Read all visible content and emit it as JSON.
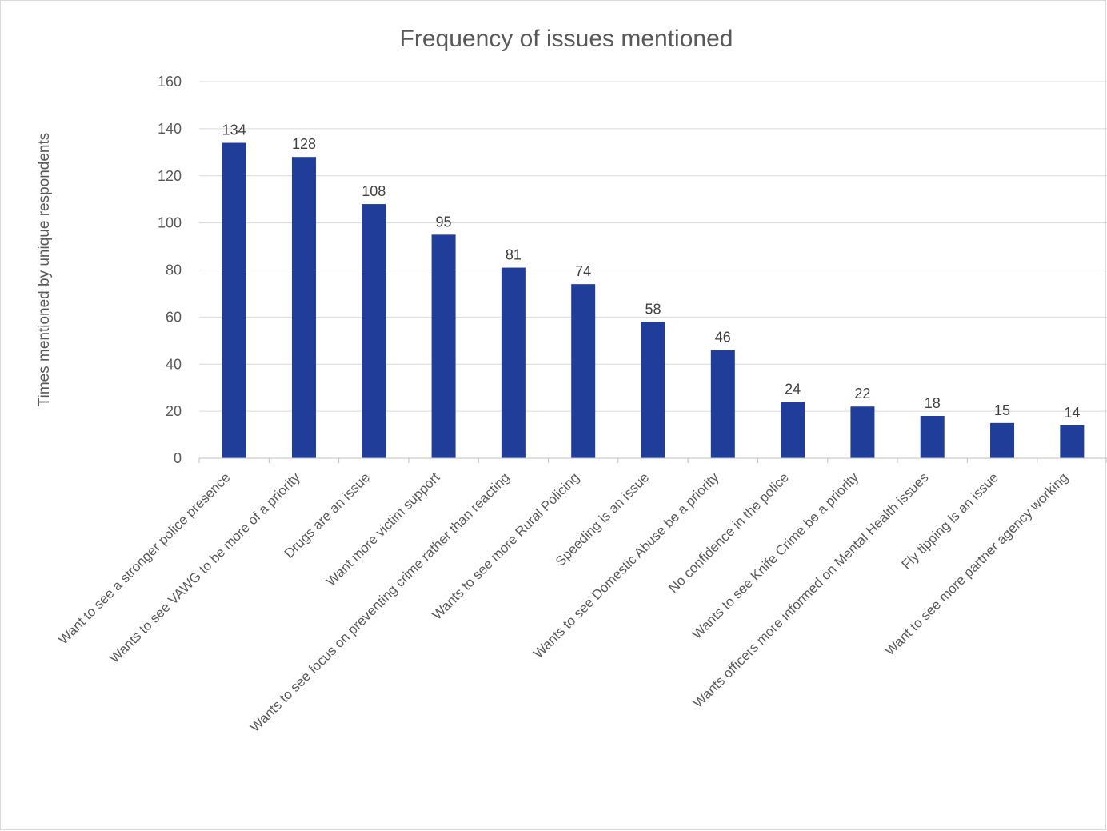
{
  "chart_data": {
    "type": "bar",
    "title": "Frequency of issues mentioned",
    "xlabel": "",
    "ylabel": "Times mentioned by unique respondents",
    "ylim": [
      0,
      160
    ],
    "ytick_step": 20,
    "grid": true,
    "legend": "none",
    "bar_color": "#1f3d99",
    "categories": [
      "Want to see a stronger police presence",
      "Wants to see VAWG to be more of a priority",
      "Drugs are an issue",
      "Want more victim support",
      "Wants to see focus on preventing crime rather than reacting",
      "Wants to see more Rural Policing",
      "Speeding is an issue",
      "Wants to see Domestic Abuse be a priority",
      "No confidence in the police",
      "Wants to see Knife Crime be a priority",
      "Wants officers more informed on Mental Health issues",
      "Fly tipping is an issue",
      "Want to see more partner agency working"
    ],
    "values": [
      134,
      128,
      108,
      95,
      81,
      74,
      58,
      46,
      24,
      22,
      18,
      15,
      14
    ]
  }
}
